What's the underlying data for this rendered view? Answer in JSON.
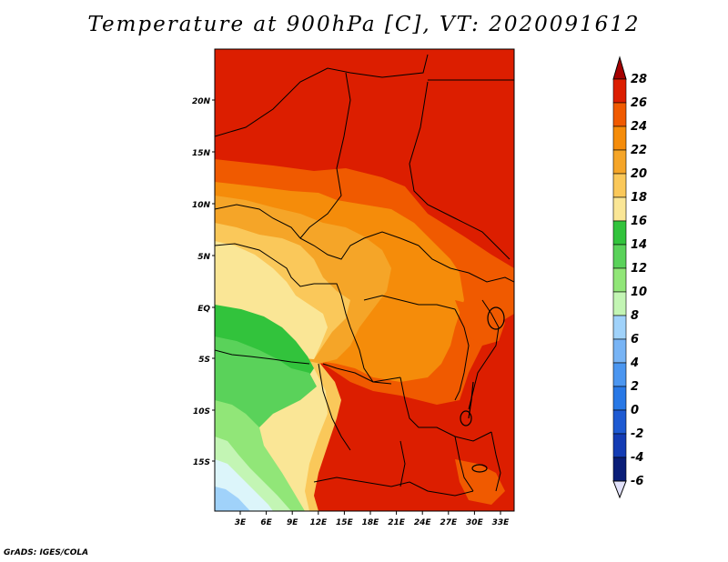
{
  "title": "Temperature at 900hPa [C], VT: 2020091612",
  "credit": "GrADS: IGES/COLA",
  "map": {
    "lat_labels": [
      "20N",
      "15N",
      "10N",
      "5N",
      "EQ",
      "5S",
      "10S",
      "15S"
    ],
    "lon_labels": [
      "3E",
      "6E",
      "9E",
      "12E",
      "15E",
      "18E",
      "21E",
      "24E",
      "27E",
      "30E",
      "33E"
    ]
  },
  "colorbar": {
    "levels": [
      "28",
      "26",
      "24",
      "22",
      "20",
      "18",
      "16",
      "14",
      "12",
      "10",
      "8",
      "6",
      "4",
      "2",
      "0",
      "-2",
      "-4",
      "-6"
    ],
    "colors": [
      "#a50000",
      "#dc1e00",
      "#f05a00",
      "#f58c0a",
      "#f5a528",
      "#fac85a",
      "#fae696",
      "#32c33c",
      "#5ad25a",
      "#91e678",
      "#c3f5b4",
      "#a0d2fa",
      "#78b4f5",
      "#4b96f0",
      "#2878e6",
      "#1e5ad2",
      "#143cb4",
      "#0a1e78",
      "#e1e1fa"
    ]
  },
  "fills": {
    "red": "#dc1e00",
    "orange_red": "#f05a00",
    "orange": "#f58c0a",
    "light_orange": "#f5a528",
    "yellow": "#fac85a",
    "pale_yellow": "#fae696",
    "green": "#32c33c",
    "light_green": "#5ad25a",
    "lighter_green": "#91e678",
    "pale_green": "#c3f5b4",
    "light_blue": "#a0d2fa",
    "cyan_white": "#dcf5fa"
  }
}
